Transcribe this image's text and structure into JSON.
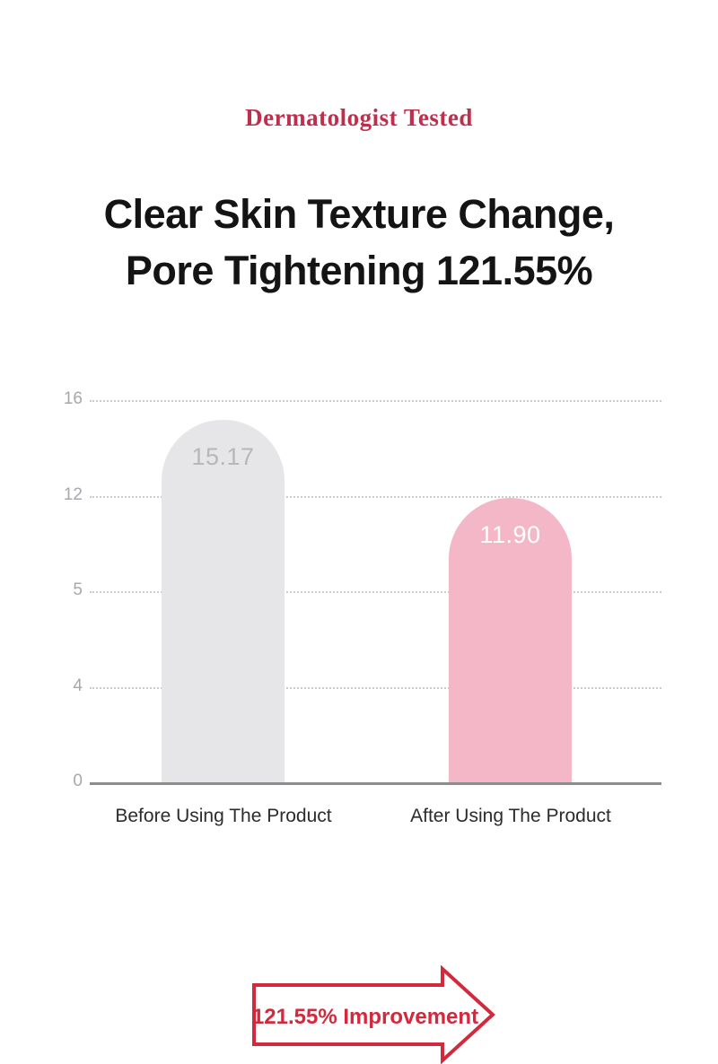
{
  "badge": {
    "label": "Dermatologist Tested",
    "color": "#c02e4d"
  },
  "title": {
    "line1": "Clear Skin Texture Change,",
    "line2": "Pore Tightening 121.55%"
  },
  "chart_data": {
    "type": "bar",
    "title": "Clear Skin Texture Change, Pore Tightening 121.55%",
    "categories": [
      "Before Using The Product",
      "After Using The Product"
    ],
    "values": [
      15.17,
      11.9
    ],
    "value_labels": [
      "15.17",
      "11.90"
    ],
    "value_label_colors": [
      "#b7b6bb",
      "#ffffff"
    ],
    "bar_colors": [
      "#e6e5e7",
      "#f4b7c7"
    ],
    "ytick_labels": [
      "16",
      "12",
      "5",
      "4",
      "0"
    ],
    "ylim": [
      0,
      16
    ],
    "xlabel": "",
    "ylabel": "",
    "grid": "horizontal-dotted",
    "gridline_color": "#cbcbcb",
    "baseline_color": "#8c8c8c",
    "legend": "none",
    "annotation": {
      "text": "121.55% Improvement",
      "shape": "right-arrow",
      "color": "#d2293c"
    }
  }
}
